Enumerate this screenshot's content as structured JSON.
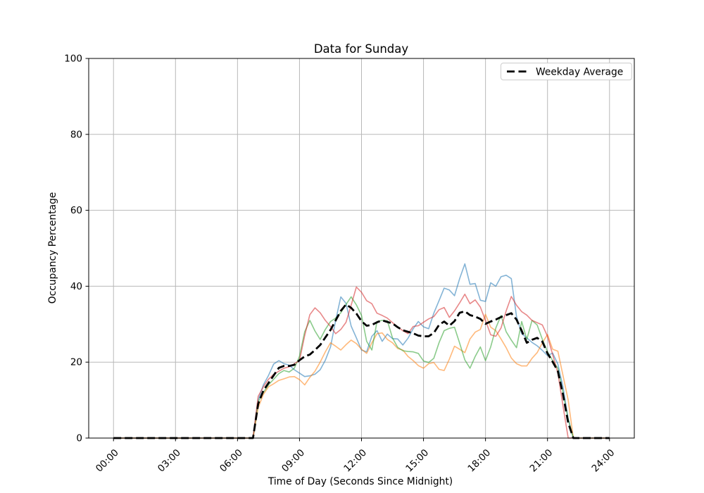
{
  "chart_data": {
    "type": "line",
    "title": "Data for Sunday",
    "xlabel": "Time of Day (Seconds Since Midnight)",
    "ylabel": "Occupancy Percentage",
    "xlim_hours": [
      -1.2,
      25.2
    ],
    "ylim": [
      0,
      100
    ],
    "grid": true,
    "grid_color": "#b8b8b8",
    "spine_color": "#000000",
    "background_color": "#ffffff",
    "x_ticks": {
      "hours": [
        0,
        3,
        6,
        9,
        12,
        15,
        18,
        21,
        24
      ],
      "labels": [
        "00:00",
        "03:00",
        "06:00",
        "09:00",
        "12:00",
        "15:00",
        "18:00",
        "21:00",
        "24:00"
      ],
      "rotation_degrees": 45
    },
    "y_ticks": {
      "values": [
        0,
        20,
        40,
        60,
        80,
        100
      ],
      "labels": [
        "0",
        "20",
        "40",
        "60",
        "80",
        "100"
      ]
    },
    "x_start_hour": 0,
    "x_step_hours": 0.25,
    "legend": {
      "position": "upper right",
      "entries": [
        {
          "label": "Weekday Average",
          "line_color": "#000000",
          "line_style": "dashed"
        }
      ]
    },
    "series": [
      {
        "name": "sunday-week-1-blue",
        "color": "#1f77b4",
        "alpha": 0.55,
        "width": 1.6,
        "dash": "",
        "values": [
          0,
          0,
          0,
          0,
          0,
          0,
          0,
          0,
          0,
          0,
          0,
          0,
          0,
          0,
          0,
          0,
          0,
          0,
          0,
          0,
          0,
          0,
          0,
          0,
          0,
          0,
          0,
          0,
          10,
          14,
          16.5,
          19.5,
          20.4,
          19.6,
          19.2,
          18,
          17.1,
          16.2,
          16.4,
          16.8,
          18,
          20.5,
          24,
          31,
          37.2,
          35.5,
          29.5,
          26.4,
          23.2,
          22.7,
          26.8,
          28.3,
          25.5,
          27.4,
          26.2,
          26.1,
          24.5,
          26.3,
          28.8,
          30.7,
          29.3,
          28.8,
          32.9,
          36.2,
          39.5,
          39,
          37.5,
          42,
          45.9,
          40.5,
          40.7,
          36.3,
          36,
          40.9,
          40,
          42.5,
          42.9,
          42,
          32,
          27.5,
          26.4,
          25.2,
          24.3,
          23.1,
          21.7,
          22.4,
          19.5,
          13.5,
          5,
          0,
          0,
          0,
          0,
          0,
          0,
          0,
          0
        ]
      },
      {
        "name": "sunday-week-2-orange",
        "color": "#ff7f0e",
        "alpha": 0.55,
        "width": 1.6,
        "dash": "",
        "values": [
          0,
          0,
          0,
          0,
          0,
          0,
          0,
          0,
          0,
          0,
          0,
          0,
          0,
          0,
          0,
          0,
          0,
          0,
          0,
          0,
          0,
          0,
          0,
          0,
          0,
          0,
          0,
          0,
          8,
          11.5,
          13.5,
          14.3,
          15.2,
          15.6,
          16.1,
          16.2,
          15.4,
          14,
          16,
          17.6,
          20,
          22.7,
          25.1,
          24.2,
          23.2,
          24.6,
          25.8,
          24.9,
          23.4,
          22.3,
          25.1,
          27.5,
          27.7,
          26,
          25.1,
          23.6,
          23.2,
          21.5,
          20.4,
          19.1,
          18.4,
          19.6,
          19.9,
          18.1,
          17.8,
          20.8,
          24.2,
          23.4,
          22.5,
          26.1,
          27.9,
          28.6,
          32.6,
          29.2,
          28.3,
          26.1,
          23.8,
          21.1,
          19.6,
          19,
          19,
          21,
          22.5,
          25.1,
          27.3,
          23.4,
          22.9,
          16.5,
          10,
          0,
          0,
          0,
          0,
          0,
          0,
          0,
          0
        ]
      },
      {
        "name": "sunday-week-3-green",
        "color": "#2ca02c",
        "alpha": 0.55,
        "width": 1.6,
        "dash": "",
        "values": [
          0,
          0,
          0,
          0,
          0,
          0,
          0,
          0,
          0,
          0,
          0,
          0,
          0,
          0,
          0,
          0,
          0,
          0,
          0,
          0,
          0,
          0,
          0,
          0,
          0,
          0,
          0,
          0,
          9.5,
          12,
          14,
          15.5,
          17,
          17.8,
          17.4,
          18.4,
          21.5,
          28,
          31,
          28.2,
          26,
          28.6,
          30.7,
          31.6,
          33,
          35.2,
          37.2,
          35.1,
          32.3,
          25.5,
          23.2,
          30.7,
          31,
          30.9,
          26.4,
          23.9,
          23,
          22.8,
          22.7,
          22.3,
          20.3,
          19.9,
          21,
          25.1,
          28.3,
          28.9,
          29.2,
          25,
          20.6,
          18.4,
          21.5,
          24,
          20.4,
          24,
          29,
          32.3,
          28,
          25.8,
          23.8,
          30.7,
          26,
          31,
          29.8,
          26,
          22.7,
          20.4,
          18.4,
          12,
          5,
          0,
          0,
          0,
          0,
          0,
          0,
          0,
          0
        ]
      },
      {
        "name": "sunday-week-4-red",
        "color": "#d62728",
        "alpha": 0.55,
        "width": 1.6,
        "dash": "",
        "values": [
          0,
          0,
          0,
          0,
          0,
          0,
          0,
          0,
          0,
          0,
          0,
          0,
          0,
          0,
          0,
          0,
          0,
          0,
          0,
          0,
          0,
          0,
          0,
          0,
          0,
          0,
          0,
          0,
          11,
          13.5,
          15.5,
          16.8,
          17.6,
          18.4,
          18.8,
          19.6,
          20.4,
          27,
          32.5,
          34.3,
          33,
          31,
          29.4,
          27.5,
          28.6,
          30.5,
          35,
          39.8,
          38.4,
          36.2,
          35.4,
          32.9,
          32.3,
          31.6,
          30.4,
          29.3,
          28.3,
          27.5,
          29.4,
          29.6,
          30.5,
          31.4,
          32,
          33.8,
          34.4,
          31.8,
          33.5,
          35.6,
          37.9,
          35.4,
          36.4,
          34.5,
          31,
          27.2,
          26.8,
          29,
          33.5,
          37.3,
          35,
          33.3,
          32.4,
          31,
          30.4,
          29.8,
          26.8,
          22,
          17.1,
          8.5,
          0,
          0,
          0,
          0,
          0,
          0,
          0,
          0,
          0
        ]
      },
      {
        "name": "weekday-average-black-dashed",
        "color": "#000000",
        "alpha": 1,
        "width": 2.8,
        "dash": "11,5",
        "values": [
          0,
          0,
          0,
          0,
          0,
          0,
          0,
          0,
          0,
          0,
          0,
          0,
          0,
          0,
          0,
          0,
          0,
          0,
          0,
          0,
          0,
          0,
          0,
          0,
          0,
          0,
          0,
          0,
          9,
          12.5,
          14.5,
          16.5,
          18.5,
          19,
          19,
          19.3,
          20.5,
          21.5,
          22,
          23.2,
          24.5,
          26.5,
          28.5,
          31,
          33.5,
          35.2,
          34.3,
          32.8,
          30.8,
          29.6,
          29.8,
          30.5,
          31,
          30.6,
          30.2,
          29.2,
          28.4,
          28,
          27.6,
          27,
          26.8,
          26.8,
          27.7,
          29.8,
          30.7,
          29.6,
          30.8,
          33,
          33.4,
          32.4,
          32,
          31.4,
          30.1,
          30.7,
          31.2,
          31.9,
          32.4,
          32.9,
          31.2,
          28.3,
          25.1,
          25.9,
          26.4,
          25.4,
          22.3,
          20.1,
          17.6,
          11.5,
          4,
          0,
          0,
          0,
          0,
          0,
          0,
          0,
          0
        ]
      }
    ]
  }
}
